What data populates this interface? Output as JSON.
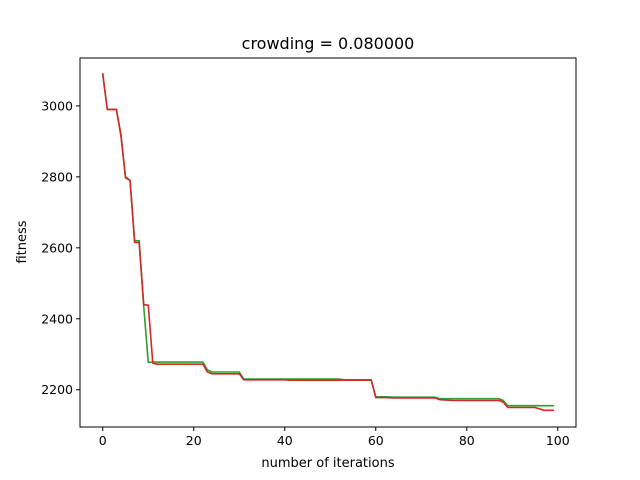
{
  "chart_data": {
    "type": "line",
    "title": "crowding = 0.080000",
    "xlabel": "number of iterations",
    "ylabel": "fitness",
    "xlim": [
      -5,
      104
    ],
    "ylim": [
      2095,
      3135
    ],
    "xticks": [
      0,
      20,
      40,
      60,
      80,
      100
    ],
    "yticks": [
      2200,
      2400,
      2600,
      2800,
      3000
    ],
    "grid": false,
    "series": [
      {
        "color": "#2ca02c",
        "x": [
          0,
          1,
          2,
          3,
          4,
          5,
          6,
          7,
          8,
          9,
          10,
          11,
          12,
          14,
          16,
          18,
          20,
          22,
          23,
          24,
          26,
          28,
          30,
          31,
          35,
          40,
          41,
          45,
          52,
          53,
          55,
          59,
          60,
          62,
          64,
          70,
          73,
          74,
          77,
          80,
          87,
          88,
          89,
          90,
          95,
          97,
          99
        ],
        "y": [
          3090,
          2990,
          2990,
          2990,
          2920,
          2797,
          2790,
          2620,
          2620,
          2435,
          2277,
          2278,
          2278,
          2278,
          2278,
          2278,
          2278,
          2278,
          2256,
          2250,
          2250,
          2250,
          2250,
          2230,
          2230,
          2230,
          2230,
          2230,
          2230,
          2228,
          2228,
          2228,
          2180,
          2180,
          2179,
          2179,
          2179,
          2175,
          2175,
          2175,
          2175,
          2170,
          2155,
          2155,
          2155,
          2155,
          2155
        ]
      },
      {
        "color": "#d62728",
        "x": [
          0,
          1,
          2,
          3,
          4,
          5,
          6,
          7,
          8,
          9,
          10,
          11,
          12,
          14,
          16,
          18,
          20,
          22,
          23,
          24,
          26,
          28,
          30,
          31,
          35,
          40,
          41,
          45,
          52,
          53,
          55,
          59,
          60,
          62,
          64,
          70,
          73,
          74,
          77,
          80,
          87,
          88,
          89,
          90,
          95,
          97,
          99
        ],
        "y": [
          3090,
          2990,
          2990,
          2990,
          2915,
          2800,
          2790,
          2615,
          2615,
          2440,
          2438,
          2275,
          2272,
          2272,
          2272,
          2272,
          2272,
          2272,
          2250,
          2245,
          2245,
          2245,
          2245,
          2228,
          2228,
          2228,
          2227,
          2227,
          2227,
          2227,
          2227,
          2227,
          2178,
          2178,
          2177,
          2177,
          2177,
          2172,
          2170,
          2170,
          2170,
          2165,
          2150,
          2150,
          2150,
          2142,
          2142
        ]
      }
    ]
  }
}
